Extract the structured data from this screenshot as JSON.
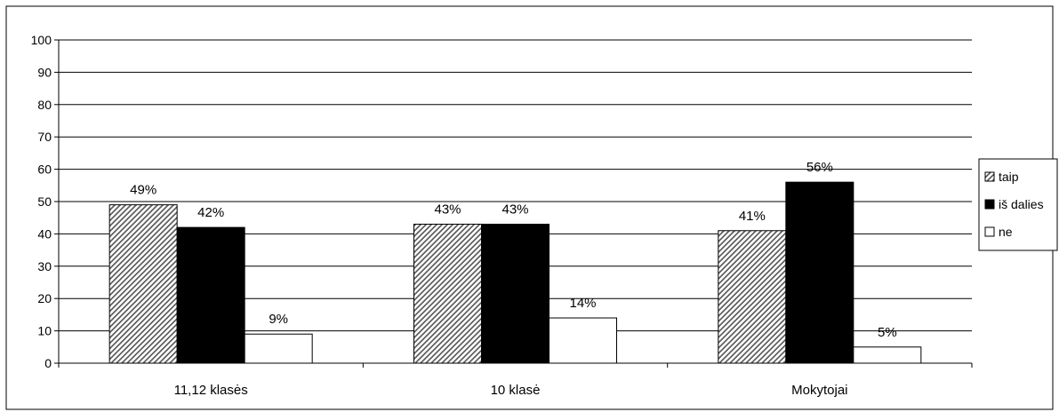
{
  "chart_data": {
    "type": "bar",
    "categories": [
      "11,12 klasės",
      "10 klasė",
      "Mokytojai"
    ],
    "series": [
      {
        "name": "taip",
        "values": [
          49,
          43,
          41
        ],
        "labels": [
          "49%",
          "43%",
          "41%"
        ],
        "fill": "hatched"
      },
      {
        "name": "iš dalies",
        "values": [
          42,
          43,
          56
        ],
        "labels": [
          "42%",
          "43%",
          "56%"
        ],
        "fill": "#000000"
      },
      {
        "name": "ne",
        "values": [
          9,
          14,
          5
        ],
        "labels": [
          "9%",
          "14%",
          "5%"
        ],
        "fill": "#ffffff"
      }
    ],
    "yticks": [
      "0",
      "10",
      "20",
      "30",
      "40",
      "50",
      "60",
      "70",
      "80",
      "90",
      "100"
    ],
    "ylim": [
      0,
      100
    ],
    "grid": true,
    "legend": "right"
  }
}
